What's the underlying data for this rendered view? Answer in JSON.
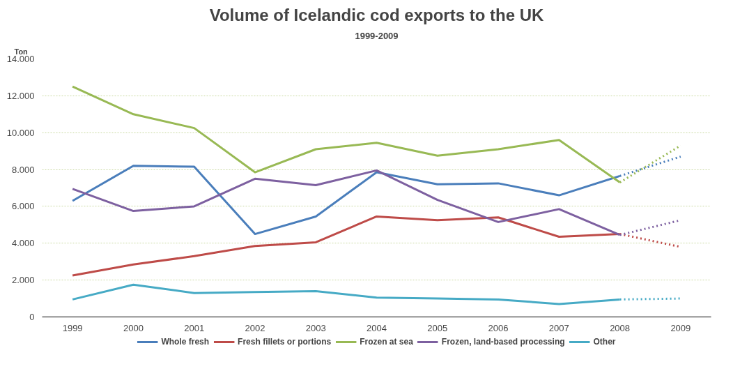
{
  "chart_data": {
    "type": "line",
    "title": "Volume of Icelandic cod exports to the UK",
    "subtitle": "1999-2009",
    "ylabel": "Ton",
    "categories": [
      "1999",
      "2000",
      "2001",
      "2002",
      "2003",
      "2004",
      "2005",
      "2006",
      "2007",
      "2008",
      "2009"
    ],
    "ylim": [
      0,
      14000
    ],
    "yticks": [
      0,
      {
        "value": 2000,
        "label": "2.000"
      },
      {
        "value": 4000,
        "label": "4.000"
      },
      {
        "value": 6000,
        "label": "6.000"
      },
      {
        "value": 8000,
        "label": "8.000"
      },
      {
        "value": 10000,
        "label": "10.000"
      },
      {
        "value": 12000,
        "label": "12.000"
      },
      {
        "value": 14000,
        "label": "14.000"
      }
    ],
    "grid": "y",
    "legend": "bottom",
    "line_style": "solid",
    "series": [
      {
        "name": "Whole fresh",
        "color": "#4a7ebb",
        "values": [
          6300,
          8200,
          8150,
          4500,
          5450,
          7850,
          7200,
          7250,
          6600,
          7650,
          null
        ]
      },
      {
        "name": "Fresh fillets or portions",
        "color": "#be4b48",
        "values": [
          2250,
          2850,
          3300,
          3850,
          4050,
          5450,
          5250,
          5400,
          4350,
          4500,
          null
        ]
      },
      {
        "name": "Frozen at sea",
        "color": "#98b954",
        "values": [
          12500,
          11000,
          10250,
          7850,
          9100,
          9450,
          8750,
          9100,
          9600,
          7300,
          null
        ]
      },
      {
        "name": "Frozen, land-based processing",
        "color": "#7d60a0",
        "values": [
          6950,
          5750,
          6000,
          7500,
          7150,
          7950,
          6350,
          5150,
          5850,
          4450,
          null
        ]
      },
      {
        "name": "Other",
        "color": "#46aac5",
        "values": [
          950,
          1750,
          1300,
          1350,
          1400,
          1050,
          1000,
          950,
          700,
          950,
          null
        ]
      },
      {
        "color": "#4a7ebb",
        "line_style": "dotted",
        "values": [
          null,
          null,
          null,
          null,
          null,
          null,
          null,
          null,
          null,
          7650,
          8700
        ]
      },
      {
        "color": "#be4b48",
        "line_style": "dotted",
        "values": [
          null,
          null,
          null,
          null,
          null,
          null,
          null,
          null,
          null,
          4500,
          3800
        ]
      },
      {
        "color": "#98b954",
        "line_style": "dotted",
        "values": [
          null,
          null,
          null,
          null,
          null,
          null,
          null,
          null,
          null,
          7300,
          9300
        ]
      },
      {
        "color": "#7d60a0",
        "line_style": "dotted",
        "values": [
          null,
          null,
          null,
          null,
          null,
          null,
          null,
          null,
          null,
          4450,
          5250
        ]
      },
      {
        "color": "#46aac5",
        "line_style": "dotted",
        "values": [
          null,
          null,
          null,
          null,
          null,
          null,
          null,
          null,
          null,
          950,
          1000
        ]
      }
    ]
  }
}
